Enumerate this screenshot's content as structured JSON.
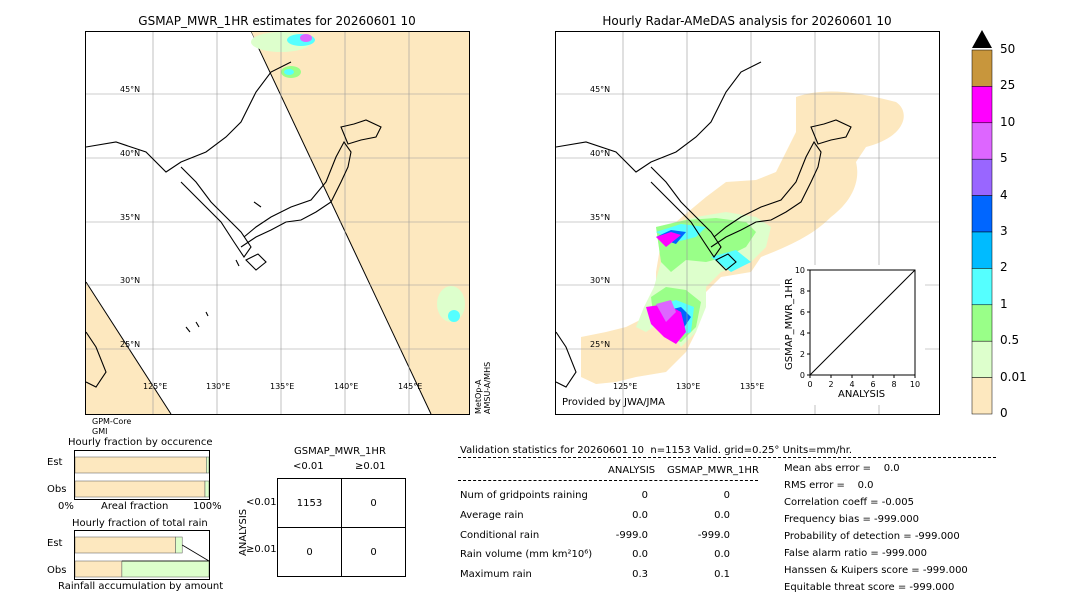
{
  "left_panel": {
    "title": "GSMAP_MWR_1HR estimates for 20260601 10",
    "lat_labels": [
      "45°N",
      "40°N",
      "35°N",
      "30°N",
      "25°N"
    ],
    "lon_labels": [
      "125°E",
      "130°E",
      "135°E",
      "140°E",
      "145°E"
    ],
    "satellite_note": "MetOp-A\nAMSU-A/MHS",
    "sensor_note_1": "GPM-Core",
    "sensor_note_2": "GMI"
  },
  "right_panel": {
    "title": "Hourly Radar-AMeDAS analysis for 20260601 10",
    "lat_labels": [
      "45°N",
      "40°N",
      "35°N",
      "30°N",
      "25°N"
    ],
    "lon_labels": [
      "125°E",
      "130°E",
      "135°E"
    ],
    "provider": "Provided by JWA/JMA"
  },
  "colorbar": {
    "labels": [
      "50",
      "25",
      "10",
      "5",
      "4",
      "3",
      "2",
      "1",
      "0.5",
      "0.01",
      "0"
    ],
    "colors": [
      "#c8963c",
      "#ff00ff",
      "#dd66ff",
      "#9966ff",
      "#0066ff",
      "#00bbff",
      "#55ffff",
      "#99ff88",
      "#ddffcc",
      "#fde8bf"
    ]
  },
  "chart_data": [
    {
      "type": "scatter",
      "title": "",
      "xlabel": "ANALYSIS",
      "ylabel": "GSMAP_MWR_1HR",
      "xlim": [
        0,
        10
      ],
      "ylim": [
        0,
        10
      ],
      "x_ticks": [
        "0",
        "2",
        "4",
        "6",
        "8",
        "10"
      ],
      "y_ticks": [
        "0",
        "2",
        "4",
        "6",
        "8",
        "10"
      ],
      "diagonal_line": [
        [
          0,
          0
        ],
        [
          10,
          10
        ]
      ]
    },
    {
      "type": "bar",
      "title": "Hourly fraction by occurence",
      "categories": [
        "Est",
        "Obs"
      ],
      "x_axis_labels": [
        "0%",
        "Areal fraction",
        "100%"
      ],
      "series": [
        {
          "values": [
            0.98,
            0.97
          ],
          "color": "#fde8bf"
        },
        {
          "values": [
            0.02,
            0.03
          ],
          "color": "#ddffcc"
        }
      ]
    },
    {
      "type": "bar",
      "title": "Hourly fraction of total rain",
      "categories": [
        "Est",
        "Obs"
      ],
      "x_axis_label": "Rainfall accumulation by amount",
      "series": [
        {
          "values": [
            0.75,
            0.35
          ],
          "color": "#fde8bf"
        },
        {
          "values": [
            0.05,
            0.65
          ],
          "color": "#ddffcc"
        }
      ]
    },
    {
      "type": "table",
      "title": "GSMAP_MWR_1HR",
      "col_headers": [
        "<0.01",
        "≥0.01"
      ],
      "row_axis": "ANALYSIS",
      "row_headers": [
        "<0.01",
        "≥0.01"
      ],
      "cells": [
        [
          "1153",
          "0"
        ],
        [
          "0",
          "0"
        ]
      ]
    }
  ],
  "validation": {
    "header": "Validation statistics for 20260601 10  n=1153 Valid. grid=0.25° Units=mm/hr.",
    "col_analysis": "ANALYSIS",
    "col_gsmap": "GSMAP_MWR_1HR",
    "rows": [
      {
        "label": "Num of gridpoints raining",
        "analysis": "0",
        "gsmap": "0"
      },
      {
        "label": "Average rain",
        "analysis": "0.0",
        "gsmap": "0.0"
      },
      {
        "label": "Conditional rain",
        "analysis": "-999.0",
        "gsmap": "-999.0"
      },
      {
        "label": "Rain volume (mm km²10⁶)",
        "analysis": "0.0",
        "gsmap": "0.0"
      },
      {
        "label": "Maximum rain",
        "analysis": "0.3",
        "gsmap": "0.1"
      }
    ],
    "scores": [
      "Mean abs error =    0.0",
      "RMS error =    0.0",
      "Correlation coeff = -0.005",
      "Frequency bias = -999.000",
      "Probability of detection = -999.000",
      "False alarm ratio = -999.000",
      "Hanssen & Kuipers score = -999.000",
      "Equitable threat score = -999.000"
    ]
  }
}
